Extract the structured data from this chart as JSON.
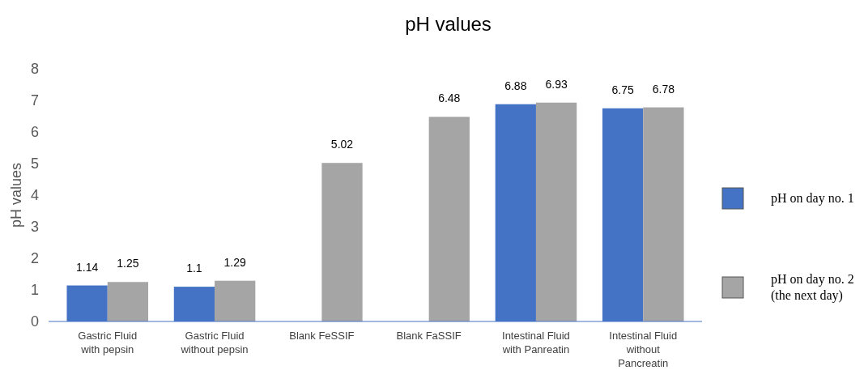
{
  "chart_data": {
    "type": "bar",
    "title": "pH values",
    "ylabel": "pH values",
    "categories": [
      "Gastric Fluid with pepsin",
      "Gastric Fluid without pepsin",
      "Blank FeSSIF",
      "Blank FaSSIF",
      "Intestinal Fluid with Panreatin",
      "Intestinal Fluid without Pancreatin"
    ],
    "series": [
      {
        "name": "pH on day no. 1",
        "color": "#4472c4",
        "values": [
          1.14,
          1.1,
          null,
          null,
          6.88,
          6.75
        ]
      },
      {
        "name": "pH on day no. 2 (the next day)",
        "color": "#a5a5a5",
        "values": [
          1.25,
          1.29,
          5.02,
          6.48,
          6.93,
          6.78
        ]
      }
    ],
    "ylim": [
      0,
      8
    ],
    "yticks": [
      0,
      1,
      2,
      3,
      4,
      5,
      6,
      7,
      8
    ],
    "data_labels": true,
    "legend": "right"
  }
}
